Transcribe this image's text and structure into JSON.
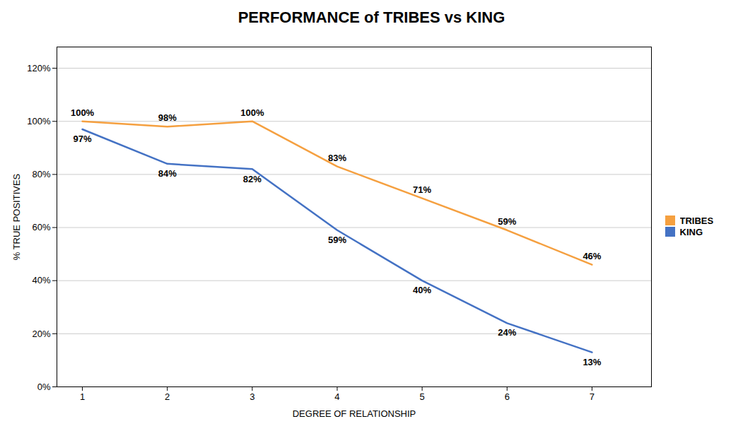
{
  "chart_data": {
    "type": "line",
    "title": "PERFORMANCE of TRIBES vs KING",
    "x_label": "DEGREE OF RELATIONSHIP",
    "y_label": "% TRUE POSITIVES",
    "x": [
      1,
      2,
      3,
      4,
      5,
      6,
      7
    ],
    "series": [
      {
        "name": "TRIBES",
        "color": "#F5A040",
        "values": [
          1.0,
          0.98,
          1.0,
          0.83,
          0.71,
          0.59,
          0.46
        ],
        "value_labels": [
          "100%",
          "98%",
          "100%",
          "83%",
          "71%",
          "59%",
          "46%"
        ]
      },
      {
        "name": "KING",
        "color": "#4472C4",
        "values": [
          0.97,
          0.84,
          0.82,
          0.59,
          0.4,
          0.24,
          0.13
        ],
        "value_labels": [
          "97%",
          "84%",
          "82%",
          "59%",
          "40%",
          "24%",
          "13%"
        ]
      }
    ],
    "xlim": [
      0.7,
      7.7
    ],
    "xticks": [
      1,
      2,
      3,
      4,
      5,
      6,
      7
    ],
    "ylim": [
      0,
      1.28
    ],
    "yticks": [
      {
        "value": 0,
        "label": "0%"
      },
      {
        "value": 0.2,
        "label": "20%"
      },
      {
        "value": 0.4,
        "label": "40%"
      },
      {
        "value": 0.6,
        "label": "60%"
      },
      {
        "value": 0.8,
        "label": "80%"
      },
      {
        "value": 1.0,
        "label": "100%"
      },
      {
        "value": 1.2,
        "label": "120%"
      }
    ],
    "grid": "y",
    "legend": "right",
    "data_labels": true
  }
}
